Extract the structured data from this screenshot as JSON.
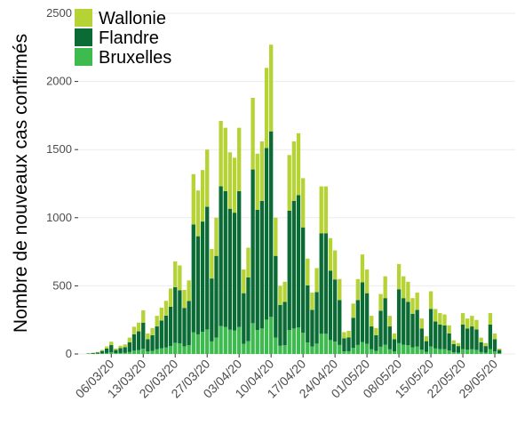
{
  "chart_data": {
    "type": "stacked_bar",
    "y_label": "Nombre de nouveaux cas confirmés",
    "categories": [
      null,
      null,
      null,
      null,
      null,
      "06/03/20",
      null,
      null,
      null,
      null,
      null,
      null,
      "13/03/20",
      null,
      null,
      null,
      null,
      null,
      null,
      "20/03/20",
      null,
      null,
      null,
      null,
      null,
      null,
      "27/03/20",
      null,
      null,
      null,
      null,
      null,
      null,
      "03/04/20",
      null,
      null,
      null,
      null,
      null,
      null,
      "10/04/20",
      null,
      null,
      null,
      null,
      null,
      null,
      "17/04/20",
      null,
      null,
      null,
      null,
      null,
      null,
      "24/04/20",
      null,
      null,
      null,
      null,
      null,
      null,
      "01/05/20",
      null,
      null,
      null,
      null,
      null,
      null,
      "08/05/20",
      null,
      null,
      null,
      null,
      null,
      null,
      "15/05/20",
      null,
      null,
      null,
      null,
      null,
      null,
      "22/05/20",
      null,
      null,
      null,
      null,
      null,
      null,
      "29/05/20",
      null
    ],
    "series": [
      {
        "name": "Wallonie",
        "color": "#b5d334",
        "values": [
          1,
          3,
          4,
          8,
          15,
          25,
          11,
          17,
          20,
          34,
          56,
          64,
          90,
          42,
          53,
          78,
          95,
          109,
          134,
          190,
          182,
          132,
          151,
          370,
          336,
          378,
          420,
          216,
          280,
          479,
          465,
          414,
          403,
          465,
          174,
          218,
          526,
          412,
          437,
          588,
          636,
          280,
          140,
          148,
          409,
          437,
          454,
          361,
          196,
          126,
          176,
          344,
          344,
          238,
          213,
          154,
          45,
          48,
          104,
          154,
          204,
          174,
          78,
          53,
          123,
          160,
          78,
          42,
          185,
          160,
          148,
          115,
          126,
          73,
          36,
          129,
          92,
          84,
          81,
          59,
          28,
          22,
          84,
          73,
          78,
          70,
          34,
          22,
          84,
          42,
          11
        ]
      },
      {
        "name": "Flandre",
        "color": "#0b6b35",
        "values": [
          3,
          6,
          9,
          18,
          33,
          54,
          24,
          36,
          42,
          72,
          120,
          138,
          192,
          90,
          114,
          168,
          204,
          234,
          288,
          408,
          390,
          282,
          324,
          792,
          720,
          810,
          900,
          462,
          600,
          1026,
          996,
          888,
          864,
          996,
          372,
          468,
          1128,
          882,
          936,
          1260,
          1362,
          600,
          300,
          318,
          876,
          936,
          972,
          774,
          420,
          270,
          378,
          738,
          738,
          510,
          456,
          330,
          96,
          102,
          222,
          330,
          438,
          372,
          168,
          114,
          264,
          342,
          168,
          90,
          396,
          342,
          318,
          246,
          270,
          156,
          78,
          276,
          198,
          180,
          174,
          126,
          60,
          48,
          180,
          156,
          168,
          150,
          72,
          48,
          180,
          90,
          24
        ]
      },
      {
        "name": "Bruxelles",
        "color": "#3dbb4f",
        "values": [
          1,
          1,
          2,
          4,
          7,
          11,
          5,
          7,
          8,
          14,
          24,
          28,
          38,
          18,
          23,
          34,
          41,
          47,
          58,
          82,
          78,
          56,
          65,
          158,
          144,
          162,
          180,
          92,
          120,
          205,
          199,
          178,
          173,
          199,
          74,
          94,
          226,
          176,
          187,
          252,
          272,
          120,
          60,
          64,
          175,
          187,
          194,
          155,
          84,
          54,
          76,
          148,
          148,
          102,
          91,
          66,
          19,
          20,
          44,
          66,
          88,
          74,
          34,
          23,
          53,
          68,
          34,
          18,
          79,
          68,
          64,
          49,
          54,
          31,
          16,
          55,
          40,
          36,
          35,
          25,
          12,
          10,
          36,
          31,
          34,
          30,
          14,
          10,
          36,
          18,
          5
        ]
      }
    ],
    "ylim": [
      0,
      2500
    ],
    "yticks": [
      0,
      500,
      1000,
      1500,
      2000,
      2500
    ],
    "grid": true,
    "legend": "top-left"
  }
}
